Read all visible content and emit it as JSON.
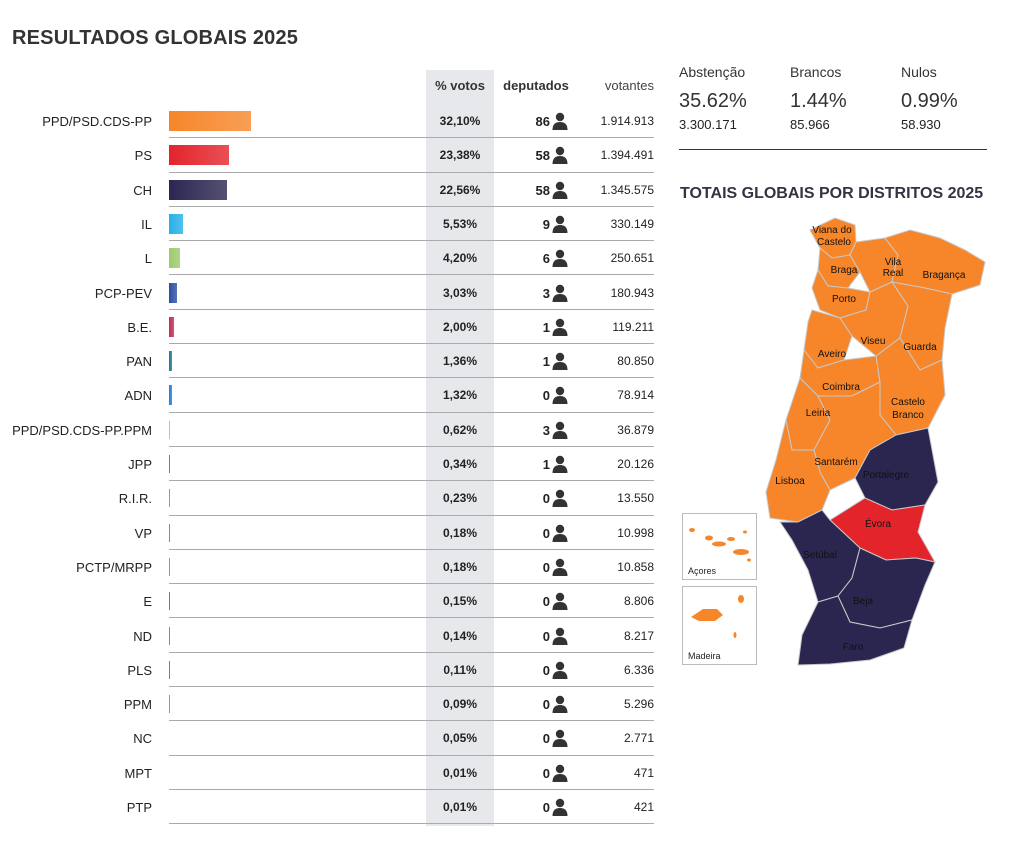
{
  "title": "RESULTADOS GLOBAIS 2025",
  "headers": {
    "pct": "% votos",
    "dep": "deputados",
    "vot": "votantes"
  },
  "chart_data": {
    "type": "bar",
    "title": "RESULTADOS GLOBAIS 2025",
    "categories": [
      "PPD/PSD.CDS-PP",
      "PS",
      "CH",
      "IL",
      "L",
      "PCP-PEV",
      "B.E.",
      "PAN",
      "ADN",
      "PPD/PSD.CDS-PP.PPM",
      "JPP",
      "R.I.R.",
      "VP",
      "PCTP/MRPP",
      "E",
      "ND",
      "PLS",
      "PPM",
      "NC",
      "MPT",
      "PTP"
    ],
    "series": [
      {
        "name": "% votos",
        "values": [
          32.1,
          23.38,
          22.56,
          5.53,
          4.2,
          3.03,
          2.0,
          1.36,
          1.32,
          0.62,
          0.34,
          0.23,
          0.18,
          0.18,
          0.15,
          0.14,
          0.11,
          0.09,
          0.05,
          0.01,
          0.01
        ]
      },
      {
        "name": "deputados",
        "values": [
          86,
          58,
          58,
          9,
          6,
          3,
          1,
          1,
          0,
          3,
          1,
          0,
          0,
          0,
          0,
          0,
          0,
          0,
          0,
          0,
          0
        ]
      },
      {
        "name": "votantes",
        "values": [
          1914913,
          1394491,
          1345575,
          330149,
          250651,
          180943,
          119211,
          80850,
          78914,
          36879,
          20126,
          13550,
          10998,
          10858,
          8806,
          8217,
          6336,
          5296,
          2771,
          471,
          421
        ]
      }
    ],
    "pct_labels": [
      "32,10%",
      "23,38%",
      "22,56%",
      "5,53%",
      "4,20%",
      "3,03%",
      "2,00%",
      "1,36%",
      "1,32%",
      "0,62%",
      "0,34%",
      "0,23%",
      "0,18%",
      "0,18%",
      "0,15%",
      "0,14%",
      "0,11%",
      "0,09%",
      "0,05%",
      "0,01%",
      "0,01%"
    ],
    "vot_labels": [
      "1.914.913",
      "1.394.491",
      "1.345.575",
      "330.149",
      "250.651",
      "180.943",
      "119.211",
      "80.850",
      "78.914",
      "36.879",
      "20.126",
      "13.550",
      "10.998",
      "10.858",
      "8.806",
      "8.217",
      "6.336",
      "5.296",
      "2.771",
      "471",
      "421"
    ],
    "colors": [
      "#f7862a",
      "#e3242b",
      "#2a2650",
      "#26b0e8",
      "#9ccb6a",
      "#2c4ea3",
      "#c42a56",
      "#1e7a8c",
      "#1e7fd8",
      "#f3b07a",
      "#1aa688",
      "#4fb5c9",
      "#4fa3ad",
      "#7a9ab0",
      "#2e9c7a",
      "#3aa6b0",
      "#3a9ca6",
      "#5aaec0",
      "#cccccc",
      "#cccccc",
      "#cccccc"
    ],
    "xlim": [
      0,
      100
    ]
  },
  "stats": [
    {
      "label": "Abstenção",
      "pct": "35.62%",
      "count": "3.300.171"
    },
    {
      "label": "Brancos",
      "pct": "1.44%",
      "count": "85.966"
    },
    {
      "label": "Nulos",
      "pct": "0.99%",
      "count": "58.930"
    }
  ],
  "map": {
    "title": "TOTAIS GLOBAIS POR DISTRITOS 2025",
    "districts": [
      {
        "name": "Viana do Castelo",
        "winner": "PPD/PSD.CDS-PP"
      },
      {
        "name": "Braga",
        "winner": "PPD/PSD.CDS-PP"
      },
      {
        "name": "Vila Real",
        "winner": "PPD/PSD.CDS-PP"
      },
      {
        "name": "Bragança",
        "winner": "PPD/PSD.CDS-PP"
      },
      {
        "name": "Porto",
        "winner": "PPD/PSD.CDS-PP"
      },
      {
        "name": "Aveiro",
        "winner": "PPD/PSD.CDS-PP"
      },
      {
        "name": "Viseu",
        "winner": "PPD/PSD.CDS-PP"
      },
      {
        "name": "Guarda",
        "winner": "PPD/PSD.CDS-PP"
      },
      {
        "name": "Coimbra",
        "winner": "PPD/PSD.CDS-PP"
      },
      {
        "name": "Castelo Branco",
        "winner": "PPD/PSD.CDS-PP"
      },
      {
        "name": "Leiria",
        "winner": "PPD/PSD.CDS-PP"
      },
      {
        "name": "Santarém",
        "winner": "PPD/PSD.CDS-PP"
      },
      {
        "name": "Lisboa",
        "winner": "PPD/PSD.CDS-PP"
      },
      {
        "name": "Portalegre",
        "winner": "CH"
      },
      {
        "name": "Évora",
        "winner": "PS"
      },
      {
        "name": "Setúbal",
        "winner": "CH"
      },
      {
        "name": "Beja",
        "winner": "CH"
      },
      {
        "name": "Faro",
        "winner": "CH"
      }
    ],
    "insets": [
      {
        "name": "Açores",
        "winner": "PPD/PSD.CDS-PP"
      },
      {
        "name": "Madeira",
        "winner": "PPD/PSD.CDS-PP"
      }
    ],
    "colors": {
      "orange": "#f7862a",
      "red": "#e3242b",
      "navy": "#2a2650",
      "border": "#c8c8c8"
    }
  }
}
